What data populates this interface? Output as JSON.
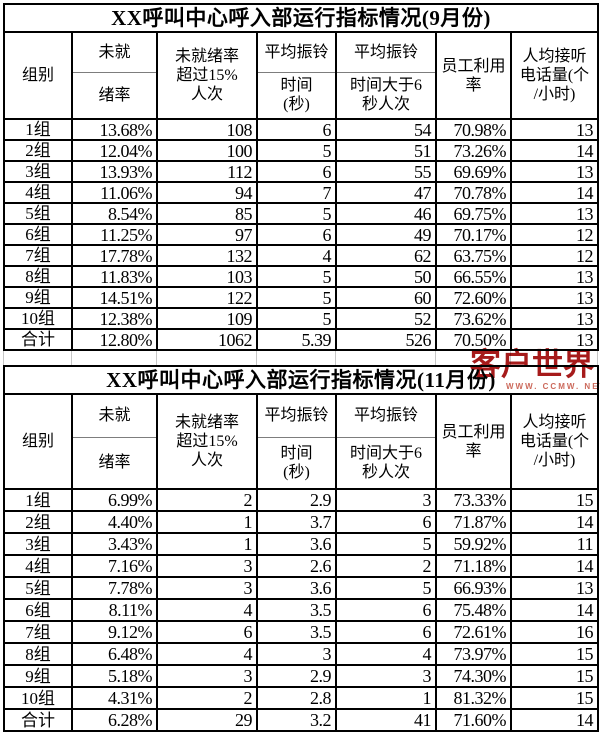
{
  "watermark": {
    "brand": "客户世界",
    "site": "WWW. CCMW. NET",
    "brand_color": "#a61b1b",
    "site_color": "#cc6a5c"
  },
  "header_ui": {
    "group": "组别",
    "not_ready_top": "未就",
    "not_ready_bottom": "绪率",
    "over15": "未就绪率\n超过15%\n人次",
    "avg_ring_top": "平均振铃",
    "avg_ring_time_bottom": "时间\n(秒)",
    "gt6_bottom": "时间大于6\n秒人次",
    "utilization": "员工利用\n率",
    "per_capita": "人均接听\n电话量(个\n/小时)"
  },
  "chart_data": [
    {
      "type": "table",
      "title": "XX呼叫中心呼入部运行指标情况(9月份)",
      "columns": [
        "组别",
        "未就绪率",
        "未就绪率超过15%人次",
        "平均振铃时间(秒)",
        "平均振铃时间大于6秒人次",
        "员工利用率",
        "人均接听电话量(个/小时)"
      ],
      "rows": [
        [
          "1组",
          "13.68%",
          "108",
          "6",
          "54",
          "70.98%",
          "13"
        ],
        [
          "2组",
          "12.04%",
          "100",
          "5",
          "51",
          "73.26%",
          "14"
        ],
        [
          "3组",
          "13.93%",
          "112",
          "6",
          "55",
          "69.69%",
          "13"
        ],
        [
          "4组",
          "11.06%",
          "94",
          "7",
          "47",
          "70.78%",
          "14"
        ],
        [
          "5组",
          "8.54%",
          "85",
          "5",
          "46",
          "69.75%",
          "13"
        ],
        [
          "6组",
          "11.25%",
          "97",
          "6",
          "49",
          "70.17%",
          "12"
        ],
        [
          "7组",
          "17.78%",
          "132",
          "4",
          "62",
          "63.75%",
          "12"
        ],
        [
          "8组",
          "11.83%",
          "103",
          "5",
          "50",
          "66.55%",
          "13"
        ],
        [
          "9组",
          "14.51%",
          "122",
          "5",
          "60",
          "72.60%",
          "13"
        ],
        [
          "10组",
          "12.38%",
          "109",
          "5",
          "52",
          "73.62%",
          "13"
        ],
        [
          "合计",
          "12.80%",
          "1062",
          "5.39",
          "526",
          "70.50%",
          "13"
        ]
      ]
    },
    {
      "type": "table",
      "title": "XX呼叫中心呼入部运行指标情况(11月份)",
      "columns": [
        "组别",
        "未就绪率",
        "未就绪率超过15%人次",
        "平均振铃时间(秒)",
        "平均振铃时间大于6秒人次",
        "员工利用率",
        "人均接听电话量(个/小时)"
      ],
      "rows": [
        [
          "1组",
          "6.99%",
          "2",
          "2.9",
          "3",
          "73.33%",
          "15"
        ],
        [
          "2组",
          "4.40%",
          "1",
          "3.7",
          "6",
          "71.87%",
          "14"
        ],
        [
          "3组",
          "3.43%",
          "1",
          "3.6",
          "5",
          "59.92%",
          "11"
        ],
        [
          "4组",
          "7.16%",
          "3",
          "2.6",
          "2",
          "71.18%",
          "14"
        ],
        [
          "5组",
          "7.78%",
          "3",
          "3.6",
          "5",
          "66.93%",
          "13"
        ],
        [
          "6组",
          "8.11%",
          "4",
          "3.5",
          "6",
          "75.48%",
          "14"
        ],
        [
          "7组",
          "9.12%",
          "6",
          "3.5",
          "6",
          "72.61%",
          "16"
        ],
        [
          "8组",
          "6.48%",
          "4",
          "3",
          "4",
          "73.97%",
          "15"
        ],
        [
          "9组",
          "5.18%",
          "3",
          "2.9",
          "3",
          "74.30%",
          "15"
        ],
        [
          "10组",
          "4.31%",
          "2",
          "2.8",
          "1",
          "81.32%",
          "15"
        ],
        [
          "合计",
          "6.28%",
          "29",
          "3.2",
          "41",
          "71.60%",
          "14"
        ]
      ]
    }
  ]
}
